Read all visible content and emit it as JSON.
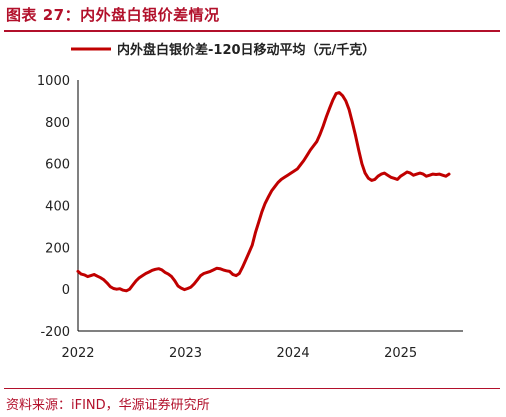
{
  "header": {
    "title": "图表 27：内外盘白银价差情况"
  },
  "footer": {
    "source": "资料来源：iFIND，华源证券研究所"
  },
  "colors": {
    "accent": "#b2102b",
    "line": "#c00000"
  },
  "chart_data": {
    "type": "line",
    "title": "",
    "xlabel": "",
    "ylabel": "",
    "ylim": [
      -200,
      1000
    ],
    "yticks": [
      -200,
      0,
      200,
      400,
      600,
      800,
      1000
    ],
    "xlim": [
      2022.0,
      2025.58
    ],
    "xticks": [
      {
        "value": 2022,
        "label": "2022"
      },
      {
        "value": 2023,
        "label": "2023"
      },
      {
        "value": 2024,
        "label": "2024"
      },
      {
        "value": 2025,
        "label": "2025"
      }
    ],
    "grid": false,
    "legend_position": "top-center",
    "series": [
      {
        "name": "内外盘白银价差-120日移动平均（元/千克）",
        "color": "#c00000",
        "x": [
          2022.0,
          2022.03,
          2022.06,
          2022.09,
          2022.12,
          2022.15,
          2022.18,
          2022.21,
          2022.24,
          2022.27,
          2022.3,
          2022.33,
          2022.36,
          2022.39,
          2022.42,
          2022.45,
          2022.48,
          2022.51,
          2022.54,
          2022.57,
          2022.6,
          2022.63,
          2022.66,
          2022.69,
          2022.72,
          2022.75,
          2022.78,
          2022.81,
          2022.84,
          2022.87,
          2022.9,
          2022.93,
          2022.96,
          2022.99,
          2023.02,
          2023.05,
          2023.08,
          2023.11,
          2023.14,
          2023.17,
          2023.2,
          2023.23,
          2023.26,
          2023.29,
          2023.32,
          2023.35,
          2023.38,
          2023.41,
          2023.44,
          2023.47,
          2023.5,
          2023.53,
          2023.56,
          2023.59,
          2023.62,
          2023.65,
          2023.68,
          2023.71,
          2023.74,
          2023.77,
          2023.8,
          2023.83,
          2023.86,
          2023.89,
          2023.92,
          2023.95,
          2023.98,
          2024.01,
          2024.04,
          2024.07,
          2024.1,
          2024.13,
          2024.16,
          2024.19,
          2024.22,
          2024.25,
          2024.28,
          2024.31,
          2024.34,
          2024.37,
          2024.4,
          2024.43,
          2024.46,
          2024.49,
          2024.52,
          2024.55,
          2024.58,
          2024.61,
          2024.64,
          2024.67,
          2024.7,
          2024.73,
          2024.76,
          2024.79,
          2024.82,
          2024.85,
          2024.88,
          2024.91,
          2024.94,
          2024.97,
          2025.0,
          2025.03,
          2025.06,
          2025.09,
          2025.12,
          2025.15,
          2025.18,
          2025.21,
          2025.24,
          2025.27,
          2025.3,
          2025.33,
          2025.36,
          2025.39,
          2025.42,
          2025.45
        ],
        "values": [
          85,
          72,
          68,
          60,
          65,
          70,
          62,
          55,
          45,
          30,
          12,
          3,
          0,
          2,
          -5,
          -8,
          0,
          20,
          40,
          55,
          65,
          75,
          82,
          90,
          95,
          98,
          92,
          80,
          72,
          60,
          40,
          15,
          5,
          -2,
          3,
          10,
          25,
          45,
          65,
          75,
          80,
          85,
          92,
          100,
          98,
          92,
          88,
          85,
          70,
          65,
          75,
          105,
          140,
          175,
          210,
          270,
          320,
          370,
          410,
          440,
          470,
          490,
          510,
          525,
          535,
          545,
          555,
          565,
          575,
          595,
          615,
          640,
          665,
          685,
          705,
          740,
          780,
          825,
          865,
          905,
          935,
          940,
          925,
          900,
          860,
          800,
          735,
          665,
          600,
          555,
          530,
          520,
          525,
          540,
          550,
          555,
          545,
          535,
          530,
          525,
          540,
          550,
          560,
          555,
          545,
          550,
          555,
          550,
          540,
          545,
          550,
          548,
          550,
          545,
          540,
          550
        ]
      }
    ]
  }
}
